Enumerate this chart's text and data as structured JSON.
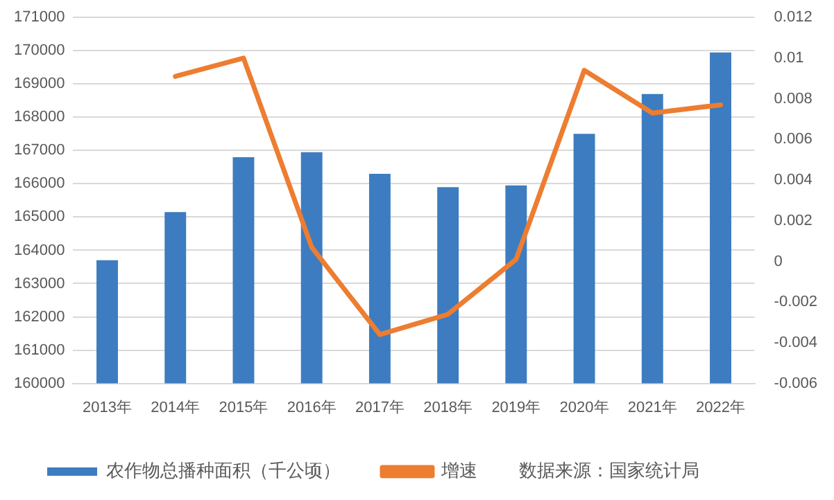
{
  "chart_data": {
    "type": "bar",
    "categories": [
      "2013年",
      "2014年",
      "2015年",
      "2016年",
      "2017年",
      "2018年",
      "2019年",
      "2020年",
      "2021年",
      "2022年"
    ],
    "series": [
      {
        "name": "农作物总播种面积（千公顷）",
        "color": "#3d7cc0",
        "values": [
          163700,
          165150,
          166800,
          166950,
          166300,
          165900,
          165950,
          167500,
          168700,
          169950
        ]
      },
      {
        "name": "增速",
        "type": "line",
        "axis": "y2",
        "color": "#ed7d31",
        "values": [
          null,
          0.0091,
          0.01,
          0.0007,
          -0.0036,
          -0.0026,
          0.0001,
          0.0094,
          0.0073,
          0.0077
        ]
      }
    ],
    "ylim": [
      160000,
      171000
    ],
    "yticks": [
      160000,
      161000,
      162000,
      163000,
      164000,
      165000,
      166000,
      167000,
      168000,
      169000,
      170000,
      171000
    ],
    "y2lim": [
      -0.006,
      0.012
    ],
    "y2ticks": [
      -0.006,
      -0.004,
      -0.002,
      0,
      0.002,
      0.004,
      0.006,
      0.008,
      0.01,
      0.012
    ],
    "grid": "y",
    "legend": "bottom",
    "marker": "none",
    "line_style": "solid",
    "annotations": [
      "数据来源：国家统计局"
    ]
  }
}
